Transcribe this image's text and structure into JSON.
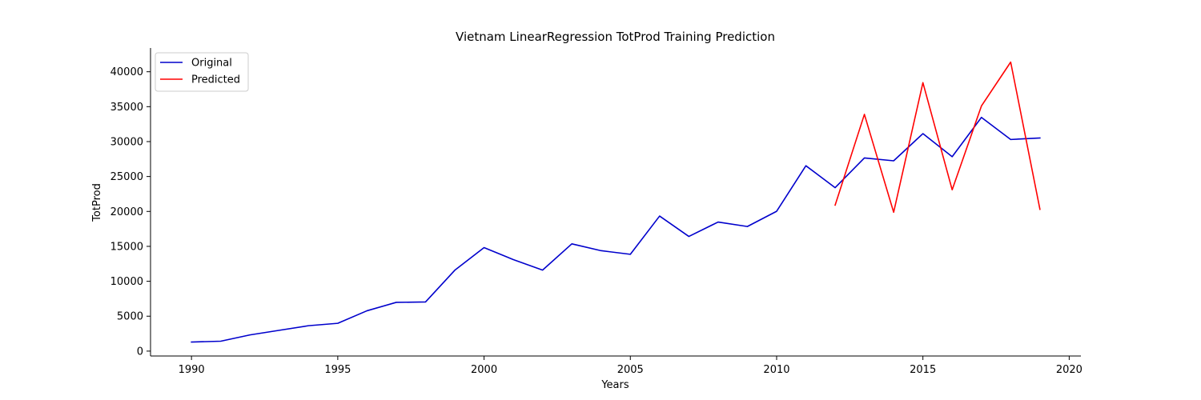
{
  "chart_data": {
    "type": "line",
    "title": "Vietnam LinearRegression TotProd Training Prediction",
    "xlabel": "Years",
    "ylabel": "TotProd",
    "xlim": [
      1988.6,
      2020.4
    ],
    "ylim": [
      -700,
      43400
    ],
    "xticks": [
      1990,
      1995,
      2000,
      2005,
      2010,
      2015,
      2020
    ],
    "yticks": [
      0,
      5000,
      10000,
      15000,
      20000,
      25000,
      30000,
      35000,
      40000
    ],
    "grid": false,
    "legend_position": "top-left",
    "series": [
      {
        "name": "Original",
        "color": "#0000cc",
        "x": [
          1990,
          1991,
          1992,
          1993,
          1994,
          1995,
          1996,
          1997,
          1998,
          1999,
          2000,
          2001,
          2002,
          2003,
          2004,
          2005,
          2006,
          2007,
          2008,
          2009,
          2010,
          2011,
          2012,
          2013,
          2014,
          2015,
          2016,
          2017,
          2018,
          2019
        ],
        "y": [
          1300,
          1420,
          2320,
          2980,
          3640,
          3980,
          5780,
          6980,
          7040,
          11580,
          14820,
          13100,
          11600,
          15360,
          14380,
          13860,
          19340,
          16420,
          18480,
          17840,
          20020,
          26540,
          23400,
          27660,
          27250,
          31140,
          27840,
          33460,
          30300,
          30520
        ]
      },
      {
        "name": "Predicted",
        "color": "#ff0000",
        "x": [
          2012,
          2013,
          2014,
          2015,
          2016,
          2017,
          2018,
          2019
        ],
        "y": [
          20900,
          33900,
          19880,
          38440,
          23100,
          35100,
          41380,
          20300
        ]
      }
    ]
  }
}
